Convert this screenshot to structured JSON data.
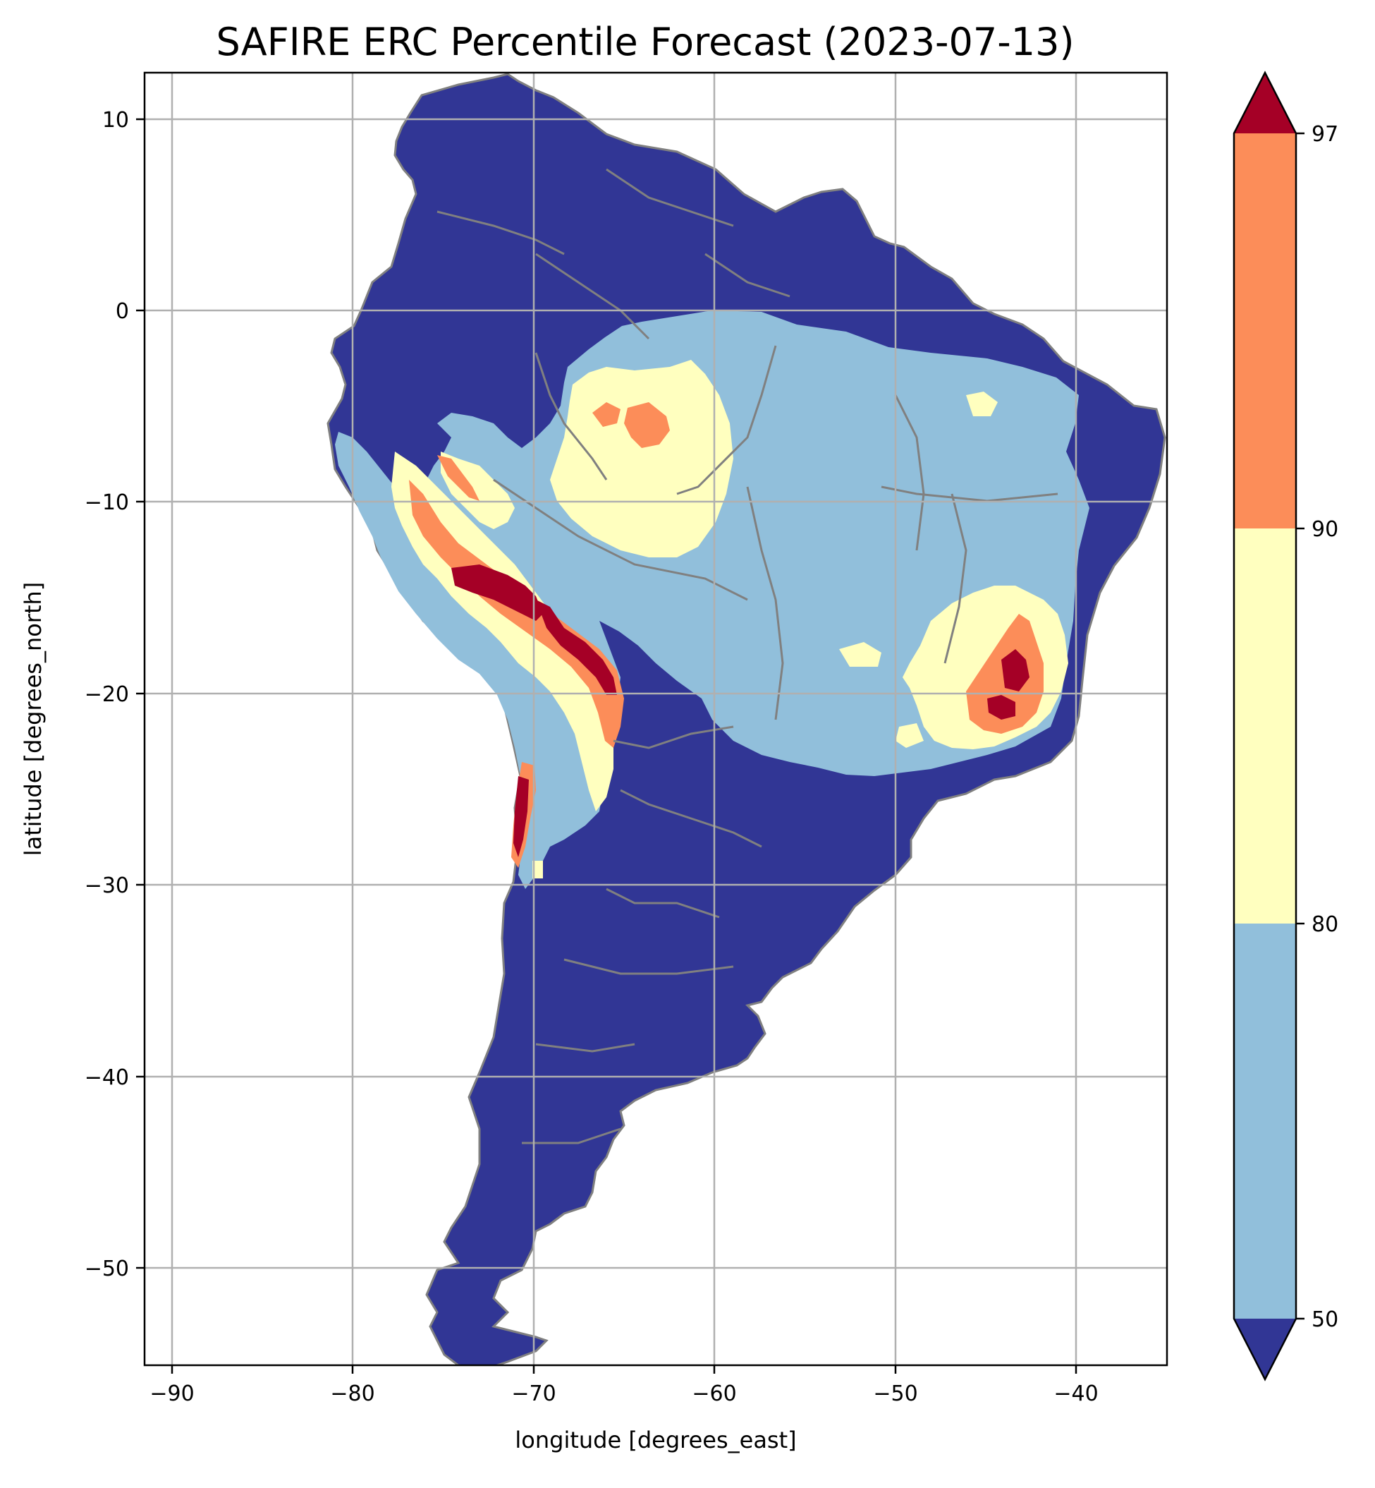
{
  "title": "SAFIRE ERC Percentile Forecast (2023-07-13)",
  "chart_data": {
    "type": "heatmap",
    "title": "SAFIRE ERC Percentile Forecast (2023-07-13)",
    "xlabel": "longitude [degrees_east]",
    "ylabel": "latitude [degrees_north]",
    "xlim": [
      -91.6,
      -35.1
    ],
    "ylim": [
      -55.8,
      12.3
    ],
    "x_ticks": [
      -90,
      -80,
      -70,
      -60,
      -50,
      -40
    ],
    "y_ticks": [
      10,
      0,
      -10,
      -20,
      -30,
      -40,
      -50
    ],
    "x_tick_labels": [
      "−90",
      "−80",
      "−70",
      "−60",
      "−50",
      "−40"
    ],
    "y_tick_labels": [
      "10",
      "0",
      "−10",
      "−20",
      "−30",
      "−40",
      "−50"
    ],
    "grid": true,
    "colorbar": {
      "extend": "both",
      "levels": [
        50,
        80,
        90,
        97
      ],
      "tick_labels": [
        "50",
        "80",
        "90",
        "97"
      ],
      "bins": [
        {
          "range": "<50",
          "color": "#313695"
        },
        {
          "range": "50-80",
          "color": "#91bfdb"
        },
        {
          "range": "80-90",
          "color": "#ffffbf"
        },
        {
          "range": "90-97",
          "color": "#fc8d59"
        },
        {
          "range": ">97",
          "color": "#a50026"
        }
      ]
    },
    "colors": {
      "border": "#808080",
      "gridline": "#b0b0b0"
    }
  }
}
